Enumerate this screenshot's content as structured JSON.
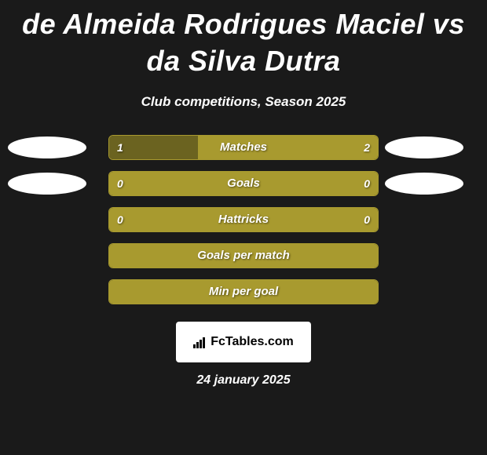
{
  "title": "de Almeida Rodrigues Maciel vs da Silva Dutra",
  "subtitle": "Club competitions, Season 2025",
  "accent_color": "#a89a2f",
  "accent_fill": "#a89a2f",
  "border_color": "#a89a2f",
  "stats": [
    {
      "label": "Matches",
      "left_val": "1",
      "right_val": "2",
      "left_pct": 33,
      "right_pct": 67,
      "left_side_accent": false,
      "fill_mode": "split",
      "show_left_oval": true,
      "show_right_oval": true
    },
    {
      "label": "Goals",
      "left_val": "0",
      "right_val": "0",
      "left_pct": 0,
      "right_pct": 0,
      "fill_mode": "full",
      "show_left_oval": true,
      "show_right_oval": true
    },
    {
      "label": "Hattricks",
      "left_val": "0",
      "right_val": "0",
      "left_pct": 0,
      "right_pct": 0,
      "fill_mode": "full",
      "show_left_oval": false,
      "show_right_oval": false
    },
    {
      "label": "Goals per match",
      "left_val": "",
      "right_val": "",
      "left_pct": 0,
      "right_pct": 0,
      "fill_mode": "full",
      "show_left_oval": false,
      "show_right_oval": false
    },
    {
      "label": "Min per goal",
      "left_val": "",
      "right_val": "",
      "left_pct": 0,
      "right_pct": 0,
      "fill_mode": "full",
      "show_left_oval": false,
      "show_right_oval": false
    }
  ],
  "logo_text": "FcTables.com",
  "date": "24 january 2025",
  "oval_color": "#ffffff",
  "track_bg": "transparent",
  "split_dark_side": "#6b6320"
}
